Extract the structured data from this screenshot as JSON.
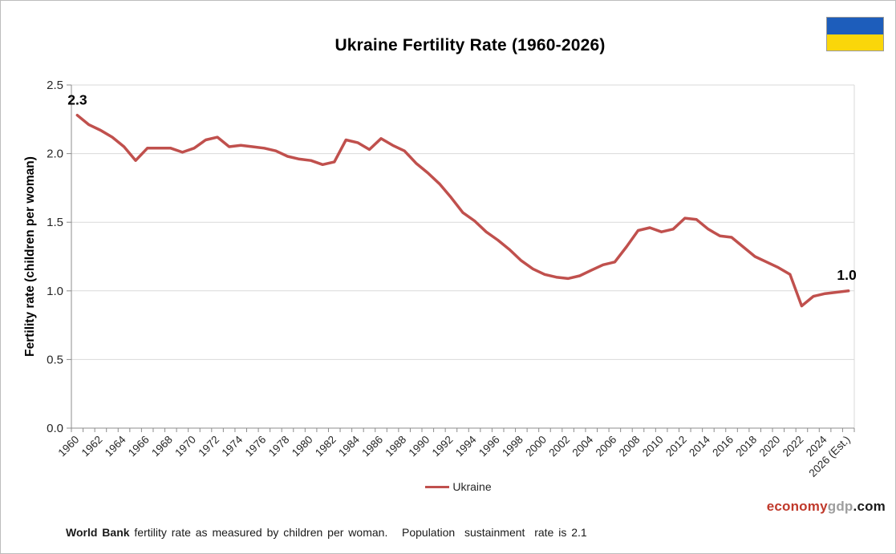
{
  "header": {
    "title": "Ukraine Fertility Rate (1960-2026)"
  },
  "flag": {
    "blue": "#1D5DBB",
    "yellow": "#FAD60A"
  },
  "chart_data": {
    "type": "line",
    "title": "Ukraine Fertility Rate (1960-2026)",
    "xlabel": "",
    "ylabel": "Fertility rate (children per woman)",
    "ylim": [
      0,
      2.5
    ],
    "yticks": [
      0.0,
      0.5,
      1.0,
      1.5,
      2.0,
      2.5
    ],
    "grid": "horizontal",
    "legend_position": "bottom",
    "x": [
      1960,
      1961,
      1962,
      1963,
      1964,
      1965,
      1966,
      1967,
      1968,
      1969,
      1970,
      1971,
      1972,
      1973,
      1974,
      1975,
      1976,
      1977,
      1978,
      1979,
      1980,
      1981,
      1982,
      1983,
      1984,
      1985,
      1986,
      1987,
      1988,
      1989,
      1990,
      1991,
      1992,
      1993,
      1994,
      1995,
      1996,
      1997,
      1998,
      1999,
      2000,
      2001,
      2002,
      2003,
      2004,
      2005,
      2006,
      2007,
      2008,
      2009,
      2010,
      2011,
      2012,
      2013,
      2014,
      2015,
      2016,
      2017,
      2018,
      2019,
      2020,
      2021,
      2022,
      2023,
      2024,
      2025,
      2026
    ],
    "xtick_labels": [
      "1960",
      "1962",
      "1964",
      "1966",
      "1968",
      "1970",
      "1972",
      "1974",
      "1976",
      "1978",
      "1980",
      "1982",
      "1984",
      "1986",
      "1988",
      "1990",
      "1992",
      "1994",
      "1996",
      "1998",
      "2000",
      "2002",
      "2004",
      "2006",
      "2008",
      "2010",
      "2012",
      "2014",
      "2016",
      "2018",
      "2020",
      "2022",
      "2024",
      "2026 (Est.)"
    ],
    "series": [
      {
        "name": "Ukraine",
        "color": "#C0504D",
        "values": [
          2.28,
          2.21,
          2.17,
          2.12,
          2.05,
          1.95,
          2.04,
          2.04,
          2.04,
          2.01,
          2.04,
          2.1,
          2.12,
          2.05,
          2.06,
          2.05,
          2.04,
          2.02,
          1.98,
          1.96,
          1.95,
          1.92,
          1.94,
          2.1,
          2.08,
          2.03,
          2.11,
          2.06,
          2.02,
          1.93,
          1.86,
          1.78,
          1.68,
          1.57,
          1.51,
          1.43,
          1.37,
          1.3,
          1.22,
          1.16,
          1.12,
          1.1,
          1.09,
          1.11,
          1.15,
          1.19,
          1.21,
          1.32,
          1.44,
          1.46,
          1.43,
          1.45,
          1.53,
          1.52,
          1.45,
          1.4,
          1.39,
          1.32,
          1.25,
          1.21,
          1.17,
          1.12,
          0.89,
          0.96,
          0.98,
          0.99,
          1.0
        ]
      }
    ],
    "annotations": [
      {
        "year": 1960,
        "text": "2.3"
      },
      {
        "year": 2026,
        "text": "1.0"
      }
    ]
  },
  "legend": {
    "label": "Ukraine"
  },
  "footer": {
    "source_bold": "World Bank",
    "source_text": " fertility rate as measured by children per woman.   Population  sustainment  rate is 2.1"
  },
  "brand": {
    "part1": "economy",
    "part2": "gdp",
    "part3": ".com",
    "color1": "#C0392B",
    "color2": "#9E9E9E",
    "color3": "#1A1A1A"
  },
  "colors": {
    "line": "#C0504D",
    "grid": "#D9D9D9",
    "axis": "#8C8C8C",
    "text": "#262626"
  }
}
